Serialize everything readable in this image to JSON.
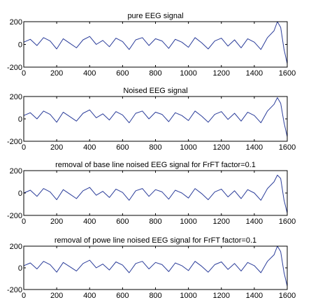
{
  "chart_data": [
    {
      "type": "line",
      "title": "pure EEG signal",
      "xlim": [
        0,
        1600
      ],
      "ylim": [
        -200,
        200
      ],
      "x_ticks": [
        "0",
        "200",
        "400",
        "600",
        "800",
        "1000",
        "1200",
        "1400",
        "1600"
      ],
      "y_ticks": [
        "200",
        "0",
        "-200"
      ],
      "color": "#2b3d9a",
      "grid": false,
      "series": [
        {
          "x": [
            0,
            40,
            80,
            120,
            160,
            200,
            240,
            280,
            320,
            360,
            400,
            440,
            480,
            520,
            560,
            600,
            640,
            680,
            720,
            760,
            800,
            840,
            880,
            920,
            960,
            1000,
            1040,
            1080,
            1120,
            1160,
            1200,
            1240,
            1280,
            1320,
            1360,
            1400,
            1440,
            1480,
            1520,
            1540,
            1560,
            1580,
            1600
          ],
          "values": [
            20,
            45,
            -10,
            60,
            30,
            -40,
            50,
            10,
            -30,
            40,
            70,
            0,
            35,
            -20,
            55,
            25,
            -45,
            40,
            60,
            -10,
            50,
            30,
            -35,
            45,
            20,
            -25,
            60,
            15,
            -40,
            30,
            55,
            -15,
            40,
            -30,
            50,
            20,
            -45,
            60,
            120,
            200,
            150,
            -40,
            -170
          ]
        }
      ]
    },
    {
      "type": "line",
      "title": "Noised EEG signal",
      "xlim": [
        0,
        1600
      ],
      "ylim": [
        -200,
        200
      ],
      "x_ticks": [
        "0",
        "200",
        "400",
        "600",
        "800",
        "1000",
        "1200",
        "1400",
        "1600"
      ],
      "y_ticks": [
        "200",
        "0",
        "-200"
      ],
      "color": "#2b3d9a",
      "grid": false,
      "series": [
        {
          "x": [
            0,
            40,
            80,
            120,
            160,
            200,
            240,
            280,
            320,
            360,
            400,
            440,
            480,
            520,
            560,
            600,
            640,
            680,
            720,
            760,
            800,
            840,
            880,
            920,
            960,
            1000,
            1040,
            1080,
            1120,
            1160,
            1200,
            1240,
            1280,
            1320,
            1360,
            1400,
            1440,
            1480,
            1520,
            1540,
            1560,
            1580,
            1600
          ],
          "values": [
            30,
            55,
            0,
            70,
            40,
            -30,
            60,
            20,
            -20,
            50,
            80,
            10,
            45,
            -10,
            65,
            35,
            -35,
            50,
            70,
            0,
            60,
            40,
            -25,
            55,
            30,
            -15,
            70,
            25,
            -30,
            40,
            65,
            -5,
            50,
            -20,
            60,
            30,
            -35,
            70,
            130,
            190,
            140,
            -30,
            -160
          ]
        }
      ]
    },
    {
      "type": "line",
      "title": "removal of base line noised EEG signal for FrFT factor=0.1",
      "xlim": [
        0,
        1600
      ],
      "ylim": [
        -200,
        200
      ],
      "x_ticks": [
        "0",
        "200",
        "400",
        "600",
        "800",
        "1000",
        "1200",
        "1400",
        "1600"
      ],
      "y_ticks": [
        "200",
        "0",
        "-200"
      ],
      "color": "#2b3d9a",
      "grid": false,
      "series": [
        {
          "x": [
            0,
            40,
            80,
            120,
            160,
            200,
            240,
            280,
            320,
            360,
            400,
            440,
            480,
            520,
            560,
            600,
            640,
            680,
            720,
            760,
            800,
            840,
            880,
            920,
            960,
            1000,
            1040,
            1080,
            1120,
            1160,
            1200,
            1240,
            1280,
            1320,
            1360,
            1400,
            1440,
            1480,
            1520,
            1540,
            1560,
            1580,
            1600
          ],
          "values": [
            0,
            25,
            -30,
            40,
            10,
            -60,
            30,
            -10,
            -50,
            20,
            50,
            -20,
            15,
            -40,
            35,
            5,
            -65,
            20,
            40,
            -30,
            30,
            10,
            -55,
            25,
            0,
            -45,
            40,
            -5,
            -60,
            10,
            35,
            -35,
            20,
            -50,
            30,
            0,
            -65,
            40,
            100,
            160,
            130,
            -60,
            -180
          ]
        }
      ]
    },
    {
      "type": "line",
      "title": "removal of powe line noised EEG signal for FrFT factor=0.1",
      "xlim": [
        0,
        1600
      ],
      "ylim": [
        -200,
        200
      ],
      "x_ticks": [
        "0",
        "200",
        "400",
        "600",
        "800",
        "1000",
        "1200",
        "1400",
        "1600"
      ],
      "y_ticks": [
        "200",
        "0",
        "-200"
      ],
      "color": "#2b3d9a",
      "grid": false,
      "series": [
        {
          "x": [
            0,
            40,
            80,
            120,
            160,
            200,
            240,
            280,
            320,
            360,
            400,
            440,
            480,
            520,
            560,
            600,
            640,
            680,
            720,
            760,
            800,
            840,
            880,
            920,
            960,
            1000,
            1040,
            1080,
            1120,
            1160,
            1200,
            1240,
            1280,
            1320,
            1360,
            1400,
            1440,
            1480,
            1520,
            1540,
            1560,
            1580,
            1600
          ],
          "values": [
            20,
            45,
            -10,
            60,
            30,
            -40,
            50,
            10,
            -30,
            40,
            70,
            0,
            35,
            -20,
            55,
            25,
            -45,
            40,
            60,
            -10,
            50,
            30,
            -35,
            45,
            20,
            -25,
            60,
            15,
            -40,
            30,
            55,
            -15,
            40,
            -30,
            50,
            20,
            -45,
            60,
            120,
            200,
            150,
            -40,
            -170
          ]
        }
      ]
    }
  ]
}
